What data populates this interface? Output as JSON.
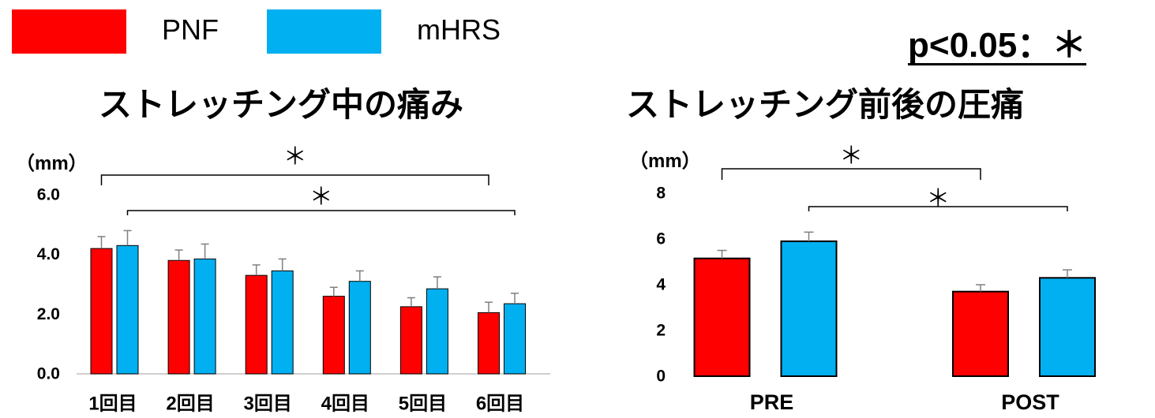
{
  "legend": {
    "position": "top-left",
    "items": [
      {
        "label": "PNF",
        "color": "#FF0000"
      },
      {
        "label": "mHRS",
        "color": "#00B0F0"
      }
    ]
  },
  "significance_note": "p<0.05：＊",
  "chart_data": [
    {
      "type": "bar",
      "title": "ストレッチング中の痛み",
      "ylabel": "（mm）",
      "categories": [
        "1回目",
        "2回目",
        "3回目",
        "4回目",
        "5回目",
        "6回目"
      ],
      "ylim": [
        0,
        6
      ],
      "yticks": [
        "0.0",
        "2.0",
        "4.0",
        "6.0"
      ],
      "grid": false,
      "x_axis_line": true,
      "series": [
        {
          "name": "PNF",
          "color": "#FF0000",
          "values": [
            4.2,
            3.8,
            3.3,
            2.6,
            2.25,
            2.05
          ],
          "error": [
            0.4,
            0.35,
            0.35,
            0.3,
            0.3,
            0.35
          ]
        },
        {
          "name": "mHRS",
          "color": "#00B0F0",
          "values": [
            4.3,
            3.85,
            3.45,
            3.1,
            2.85,
            2.35
          ],
          "error": [
            0.5,
            0.5,
            0.4,
            0.35,
            0.4,
            0.35
          ]
        }
      ],
      "significance": [
        {
          "series": "PNF",
          "from": "1回目",
          "to": "6回目",
          "label": "＊"
        },
        {
          "series": "mHRS",
          "from": "1回目",
          "to": "6回目",
          "label": "＊"
        }
      ]
    },
    {
      "type": "bar",
      "title": "ストレッチング前後の圧痛",
      "ylabel": "（mm）",
      "categories": [
        "PRE",
        "POST"
      ],
      "ylim": [
        0,
        8
      ],
      "yticks": [
        "0",
        "2",
        "4",
        "6",
        "8"
      ],
      "grid": false,
      "x_axis_line": false,
      "series": [
        {
          "name": "PNF",
          "color": "#FF0000",
          "values": [
            5.15,
            3.7
          ],
          "error": [
            0.35,
            0.3
          ]
        },
        {
          "name": "mHRS",
          "color": "#00B0F0",
          "values": [
            5.9,
            4.3
          ],
          "error": [
            0.4,
            0.35
          ]
        }
      ],
      "significance": [
        {
          "series": "PNF",
          "from": "PRE",
          "to": "POST",
          "label": "＊"
        },
        {
          "series": "mHRS",
          "from": "PRE",
          "to": "POST",
          "label": "＊"
        }
      ]
    }
  ]
}
